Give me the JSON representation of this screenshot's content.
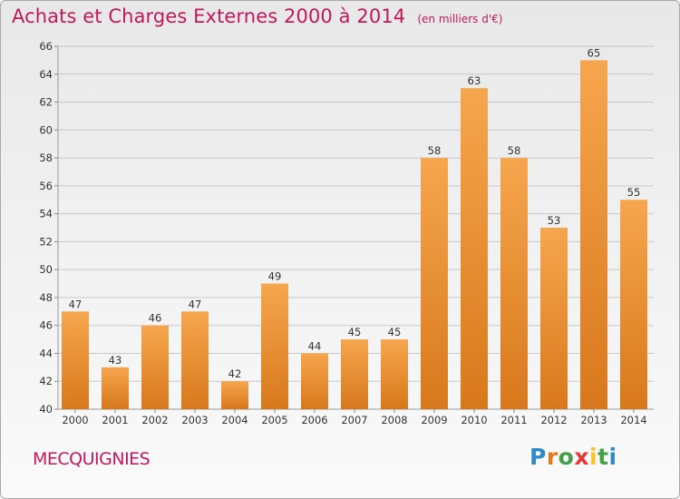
{
  "header": {
    "title": "Achats et Charges Externes 2000 à 2014",
    "subtitle": "(en milliers d'€)"
  },
  "footer": {
    "location": "MECQUIGNIES",
    "brand": [
      "P",
      "r",
      "o",
      "x",
      "i",
      "t",
      "i"
    ]
  },
  "colors": {
    "title": "#c2185b",
    "bar_light": "#f6a64e",
    "bar_dark": "#d8781c",
    "grid": "#c8c8c8",
    "brand": [
      "#2e8bc9",
      "#e3791a",
      "#43a047",
      "#e53935",
      "#fbc02d",
      "#43a047",
      "#2e8bc9"
    ]
  },
  "chart_data": {
    "type": "bar",
    "categories": [
      "2000",
      "2001",
      "2002",
      "2003",
      "2004",
      "2005",
      "2006",
      "2007",
      "2008",
      "2009",
      "2010",
      "2011",
      "2012",
      "2013",
      "2014"
    ],
    "values": [
      47,
      43,
      46,
      47,
      42,
      49,
      44,
      45,
      45,
      58,
      63,
      58,
      53,
      65,
      55
    ],
    "yticks": [
      "40",
      "42",
      "44",
      "46",
      "48",
      "50",
      "52",
      "54",
      "56",
      "58",
      "60",
      "62",
      "64",
      "66"
    ],
    "ylim": [
      40,
      66
    ],
    "grid": true,
    "title": "Achats et Charges Externes 2000 à 2014",
    "xlabel": "",
    "ylabel": ""
  }
}
